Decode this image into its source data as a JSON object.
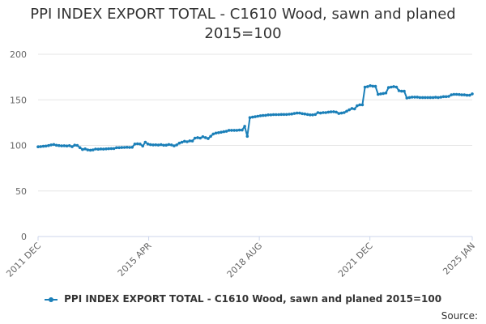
{
  "chart_data": {
    "type": "line",
    "title_line1": "PPI INDEX EXPORT TOTAL - C1610 Wood, sawn and planed",
    "title_line2": "2015=100",
    "ylim": [
      0,
      200
    ],
    "yticks": [
      0,
      50,
      100,
      150,
      200
    ],
    "xtick_labels": [
      "2011 DEC",
      "2015 APR",
      "2018 AUG",
      "2021 DEC",
      "2025 JAN"
    ],
    "x_start": "2011-12",
    "x_end": "2025-01",
    "grid": true,
    "legend_position": "bottom",
    "series_color": "#1a7fb8",
    "series": [
      {
        "name": "PPI INDEX EXPORT TOTAL - C1610 Wood, sawn and planed 2015=100",
        "values": [
          98.5,
          98.7,
          99.0,
          99.3,
          99.8,
          100.5,
          101.0,
          100.2,
          99.8,
          99.5,
          99.6,
          99.4,
          99.7,
          98.6,
          100.3,
          100.0,
          97.5,
          95.5,
          96.2,
          95.0,
          94.8,
          95.0,
          96.0,
          95.8,
          96.1,
          95.9,
          96.2,
          96.4,
          96.5,
          96.5,
          97.5,
          97.5,
          97.7,
          97.8,
          98.0,
          97.8,
          98.0,
          101.5,
          101.8,
          101.5,
          99.3,
          103.5,
          101.5,
          100.8,
          100.5,
          100.6,
          100.4,
          100.8,
          100.2,
          100.3,
          101.0,
          100.5,
          99.5,
          100.5,
          102.5,
          103.5,
          104.5,
          104.0,
          105.0,
          104.8,
          108.0,
          108.5,
          108.0,
          109.5,
          108.5,
          107.5,
          110.0,
          112.5,
          113.5,
          114.0,
          114.5,
          115.0,
          115.5,
          116.5,
          116.5,
          116.5,
          116.5,
          116.8,
          116.8,
          121.0,
          110.0,
          130.5,
          131.0,
          131.5,
          132.0,
          132.5,
          132.8,
          133.0,
          133.5,
          133.5,
          133.8,
          133.8,
          133.8,
          134.0,
          134.0,
          134.0,
          134.2,
          134.5,
          135.0,
          135.5,
          135.5,
          134.8,
          134.5,
          134.0,
          133.5,
          133.5,
          134.0,
          136.0,
          135.5,
          136.0,
          136.0,
          136.5,
          136.8,
          137.0,
          136.5,
          135.0,
          135.5,
          136.0,
          137.5,
          139.0,
          140.5,
          140.0,
          143.5,
          144.5,
          144.5,
          164.0,
          164.5,
          165.5,
          165.0,
          164.8,
          156.0,
          156.5,
          157.0,
          157.5,
          163.5,
          164.0,
          164.5,
          164.0,
          160.0,
          159.5,
          159.5,
          152.0,
          152.5,
          153.0,
          153.0,
          153.0,
          152.5,
          152.5,
          152.5,
          152.5,
          152.5,
          152.5,
          152.8,
          152.5,
          153.0,
          153.5,
          153.5,
          153.8,
          155.5,
          156.0,
          156.0,
          155.8,
          155.5,
          155.5,
          155.0,
          155.0,
          156.5
        ]
      }
    ]
  },
  "legend_label": "PPI INDEX EXPORT TOTAL - C1610 Wood, sawn and planed 2015=100",
  "source_label": "Source:"
}
